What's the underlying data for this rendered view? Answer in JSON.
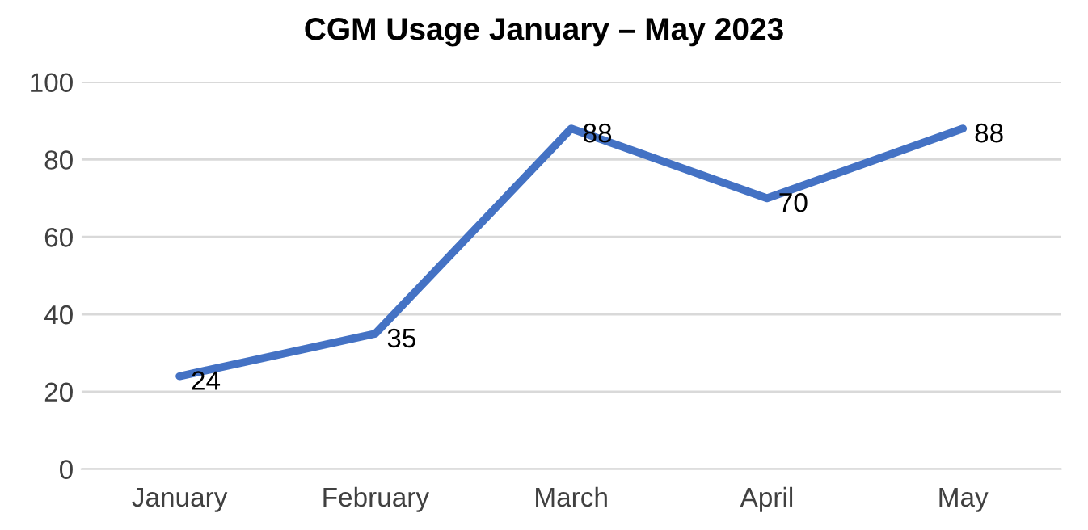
{
  "chart_data": {
    "type": "line",
    "title": "CGM Usage January – May 2023",
    "categories": [
      "January",
      "February",
      "March",
      "April",
      "May"
    ],
    "series": [
      {
        "color": "#4472c4",
        "values": [
          24,
          35,
          88,
          70,
          88
        ]
      }
    ],
    "ylim": [
      0,
      100
    ],
    "yticks": [
      0,
      20,
      40,
      60,
      80,
      100
    ],
    "grid": "y",
    "data_labels": true,
    "marker": "none",
    "line_style": "solid"
  }
}
